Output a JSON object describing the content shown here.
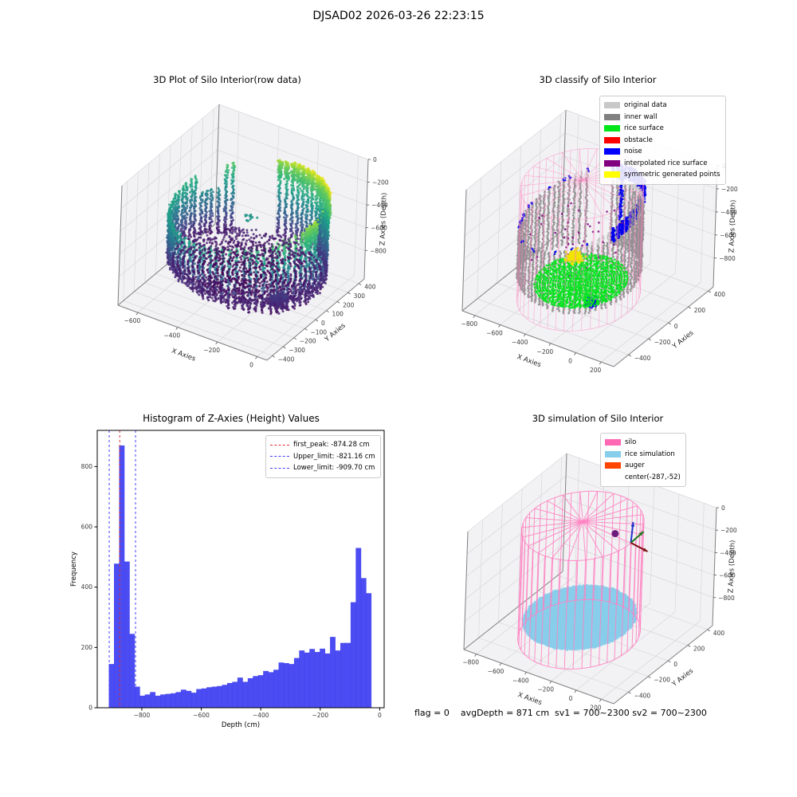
{
  "suptitle": "DJSAD02 2026-03-26 22:23:15",
  "footer": {
    "status_text": "flag = 0    avgDepth = 871 cm  sv1 = 700~2300 sv2 = 700~2300"
  },
  "colors": {
    "background": "#ffffff",
    "pane": "#f2f2f4",
    "grid": "#d8d8dc",
    "spine": "#808080",
    "histogram_bar": "#3d3df2",
    "silo_wireframe": "#ff7fc0",
    "rice_disk": "#87ceeb",
    "center_marker": "#6b1d7e"
  },
  "chart_data": [
    {
      "type": "scatter",
      "projection": "3d",
      "title": "3D Plot of Silo Interior(row data)",
      "xlabel": "X Axies",
      "ylabel": "Y Axies",
      "zlabel": "Z Axies (Depth)",
      "xticks": [
        -600,
        -400,
        -200,
        0
      ],
      "yticks": [
        400,
        300,
        200,
        100,
        0,
        -100,
        -200,
        -300,
        -400
      ],
      "zticks": [
        0,
        -200,
        -400,
        -600,
        -800
      ],
      "xlim": [
        -700,
        50
      ],
      "ylim": [
        -450,
        450
      ],
      "zlim": [
        -1050,
        0
      ],
      "colormap": "viridis",
      "content": "Raw LiDAR point cloud of silo interior: cylindrical wall of vertical point stripes, radius ~350 cm centered near (-300,0); rim depth varies from ~-130 cm (bright yellow, +x+y side) to ~-400 cm; floor/rice surface bowl of dark purple points near -850 cm; color encodes Z depth (viridis: yellow=shallow, purple=deep)",
      "cylinder": {
        "cx": -300,
        "cy": 0,
        "r": 350,
        "rim_z_high": -125,
        "rim_z_low": -405,
        "floor_z": -860
      }
    },
    {
      "type": "scatter",
      "projection": "3d",
      "title": "3D classify of Silo Interior",
      "xlabel": "X Axies",
      "ylabel": "Y Axies",
      "zlabel": "Z Axies (Depth)",
      "xticks": [
        -800,
        -600,
        -400,
        -200,
        0,
        200
      ],
      "yticks": [
        400,
        200,
        0,
        -200,
        -400
      ],
      "zticks": [
        0,
        -200,
        -400,
        -600,
        -800
      ],
      "xlim": [
        -900,
        300
      ],
      "ylim": [
        -550,
        450
      ],
      "zlim": [
        -1050,
        0
      ],
      "legend": [
        {
          "label": "original data",
          "color": "#c8c8c8"
        },
        {
          "label": "inner wall",
          "color": "#808080"
        },
        {
          "label": "rice surface",
          "color": "#00e619"
        },
        {
          "label": "obstacle",
          "color": "#ff0000"
        },
        {
          "label": "noise",
          "color": "#0000ff"
        },
        {
          "label": "interpolated rice surface",
          "color": "#800080"
        },
        {
          "label": "symmetric generated points",
          "color": "#ffff00"
        }
      ],
      "content": "Classified point cloud inside pink silo wireframe cylinder: gray inner-wall stripes, blue noise band along upper rim (right side), green rice-surface concentric rings at bottom front, yellow symmetric generated points cluster at bottom left-center, sparse purple interpolated points"
    },
    {
      "type": "histogram",
      "title": "Histogram of Z-Axies (Height) Values",
      "xlabel": "Depth (cm)",
      "ylabel": "Frequency",
      "xticks": [
        -800,
        -600,
        -400,
        -200,
        0
      ],
      "yticks": [
        0,
        200,
        400,
        600,
        800
      ],
      "xlim": [
        -950,
        15
      ],
      "ylim": [
        0,
        920
      ],
      "bin_start": -911,
      "bin_width": 17.3,
      "values": [
        145,
        478,
        870,
        485,
        245,
        70,
        40,
        44,
        52,
        40,
        44,
        46,
        48,
        52,
        60,
        56,
        50,
        62,
        64,
        68,
        70,
        72,
        76,
        82,
        86,
        100,
        86,
        98,
        105,
        108,
        122,
        118,
        126,
        150,
        148,
        145,
        165,
        190,
        183,
        195,
        185,
        196,
        180,
        235,
        190,
        215,
        215,
        350,
        530,
        430,
        380
      ],
      "vlines": [
        {
          "label": "first_peak: -874.28 cm",
          "x": -874.28,
          "color": "#e03131"
        },
        {
          "label": "Upper_limit: -821.16 cm",
          "x": -821.16,
          "color": "#4040ff"
        },
        {
          "label": "Lower_limit: -909.70 cm",
          "x": -909.7,
          "color": "#4040ff"
        }
      ]
    },
    {
      "type": "scatter",
      "projection": "3d",
      "title": "3D simulation of Silo Interior",
      "xlabel": "X Axies",
      "ylabel": "Y Axies",
      "zlabel": "Z Axies (Depth)",
      "xticks": [
        -800,
        -600,
        -400,
        -200,
        0,
        200
      ],
      "yticks": [
        400,
        200,
        0,
        -200,
        -400
      ],
      "zticks": [
        0,
        -200,
        -400,
        -600,
        -800
      ],
      "xlim": [
        -900,
        300
      ],
      "ylim": [
        -550,
        450
      ],
      "zlim": [
        -1050,
        0
      ],
      "legend": [
        {
          "label": "silo",
          "color": "#ff69b4"
        },
        {
          "label": "rice simulation",
          "color": "#87ceeb"
        },
        {
          "label": "auger",
          "color": "#ff4500"
        },
        {
          "label": "center(-287,-52)",
          "color": null
        }
      ],
      "content": "Simulation: pink silo wireframe cylinder with conical spoke roof, sky-blue simulated rice surface disk at avg depth ~-871 cm, dark purple center marker near silo top, small RGB orientation triad (blue up / green / dark red arrows) at the right rim"
    }
  ]
}
